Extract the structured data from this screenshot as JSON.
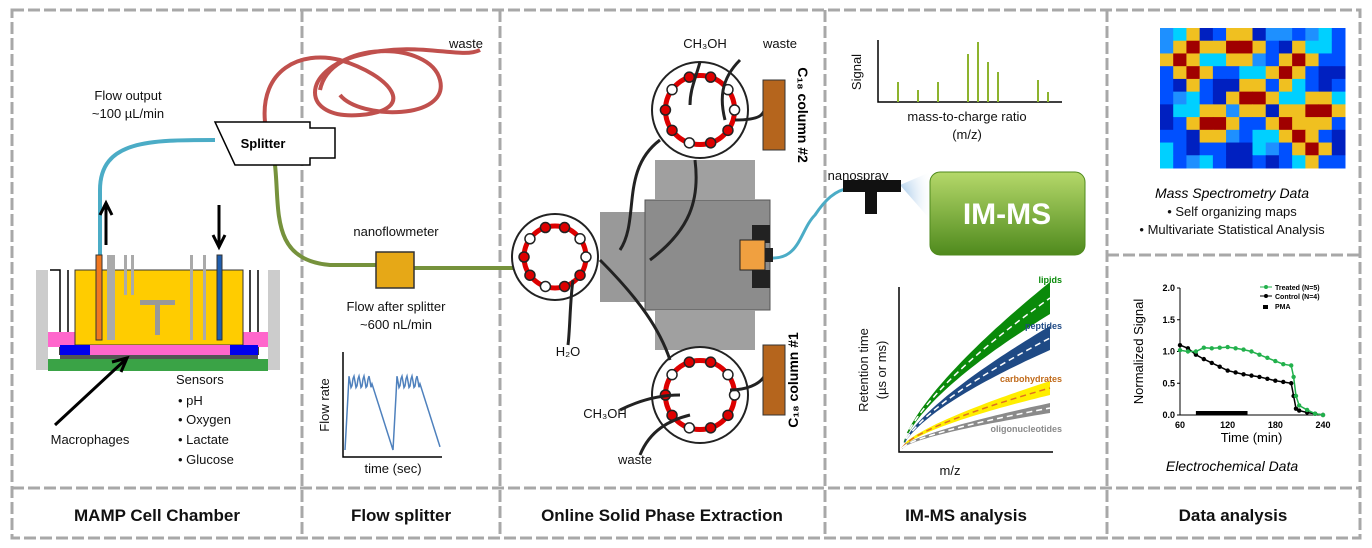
{
  "sections": {
    "cell_chamber": {
      "label": "MAMP Cell Chamber",
      "flow_output_line1": "Flow output",
      "flow_output_line2": "~100 µL/min",
      "macrophages": "Macrophages",
      "sensors_title": "Sensors",
      "sensors": [
        "• pH",
        "• Oxygen",
        "• Lactate",
        "• Glucose"
      ]
    },
    "flow_splitter": {
      "label": "Flow splitter",
      "waste": "waste",
      "splitter": "Splitter",
      "nanoflowmeter": "nanoflowmeter",
      "flow_after_line1": "Flow after splitter",
      "flow_after_line2": "~600 nL/min",
      "plot_ylabel": "Flow rate",
      "plot_xlabel": "time (sec)"
    },
    "spe": {
      "label": "Online Solid Phase Extraction",
      "ch3oh_top": "CH₃OH",
      "waste_top": "waste",
      "h2o": "H₂O",
      "ch3oh_bottom": "CH₃OH",
      "waste_bottom": "waste",
      "column2": "C₁₈ column #2",
      "column1": "C₁₈ column #1"
    },
    "imms": {
      "label": "IM-MS analysis",
      "spectrum_ylabel": "Signal",
      "spectrum_xlabel_line1": "mass-to-charge ratio",
      "spectrum_xlabel_line2": "(m/z)",
      "nanospray": "nanospray",
      "instrument": "IM-MS",
      "mobility_ylabel_line1": "Retention time",
      "mobility_ylabel_line2": "(µs or ms)",
      "mobility_xlabel": "m/z",
      "bands": [
        {
          "name": "lipids",
          "color": "#0a8a0a"
        },
        {
          "name": "peptides",
          "color": "#1f4a85"
        },
        {
          "name": "carbohydrates",
          "color": "#c06a1a"
        },
        {
          "name": "oligonucleotides",
          "color": "#8a8a8a"
        }
      ]
    },
    "data_analysis": {
      "label": "Data analysis",
      "ms_title": "Mass Spectrometry Data",
      "ms_bullets": [
        "• Self organizing maps",
        "• Multivariate  Statistical Analysis"
      ],
      "ec_title": "Electrochemical Data"
    }
  },
  "chart_data": {
    "type": "line",
    "xlabel": "Time (min)",
    "ylabel": "Normalized Signal",
    "xlim": [
      60,
      240
    ],
    "ylim": [
      0,
      2.0
    ],
    "xticks": [
      "60",
      "120",
      "180",
      "240"
    ],
    "yticks": [
      "0.0",
      "0.5",
      "1.0",
      "1.5",
      "2.0"
    ],
    "legend": "top-right",
    "series": [
      {
        "name": "Treated (N=5)",
        "color": "#22b14c",
        "x": [
          60,
          70,
          80,
          90,
          100,
          110,
          120,
          130,
          140,
          150,
          160,
          170,
          180,
          190,
          200,
          203,
          206,
          210,
          220,
          230,
          240
        ],
        "y": [
          1.02,
          1.0,
          1.0,
          1.06,
          1.05,
          1.06,
          1.07,
          1.05,
          1.03,
          1.0,
          0.95,
          0.9,
          0.85,
          0.8,
          0.78,
          0.6,
          0.3,
          0.15,
          0.08,
          0.02,
          0.0
        ]
      },
      {
        "name": "Control (N=4)",
        "color": "#000000",
        "x": [
          60,
          70,
          80,
          90,
          100,
          110,
          120,
          130,
          140,
          150,
          160,
          170,
          180,
          190,
          200,
          203,
          206,
          210,
          220,
          230,
          240
        ],
        "y": [
          1.1,
          1.05,
          0.95,
          0.88,
          0.82,
          0.76,
          0.7,
          0.67,
          0.64,
          0.62,
          0.6,
          0.57,
          0.54,
          0.52,
          0.5,
          0.3,
          0.1,
          0.07,
          0.04,
          0.02,
          0.0
        ]
      }
    ],
    "annotation": {
      "name": "PMA",
      "x_start": 80,
      "x_end": 145
    }
  }
}
